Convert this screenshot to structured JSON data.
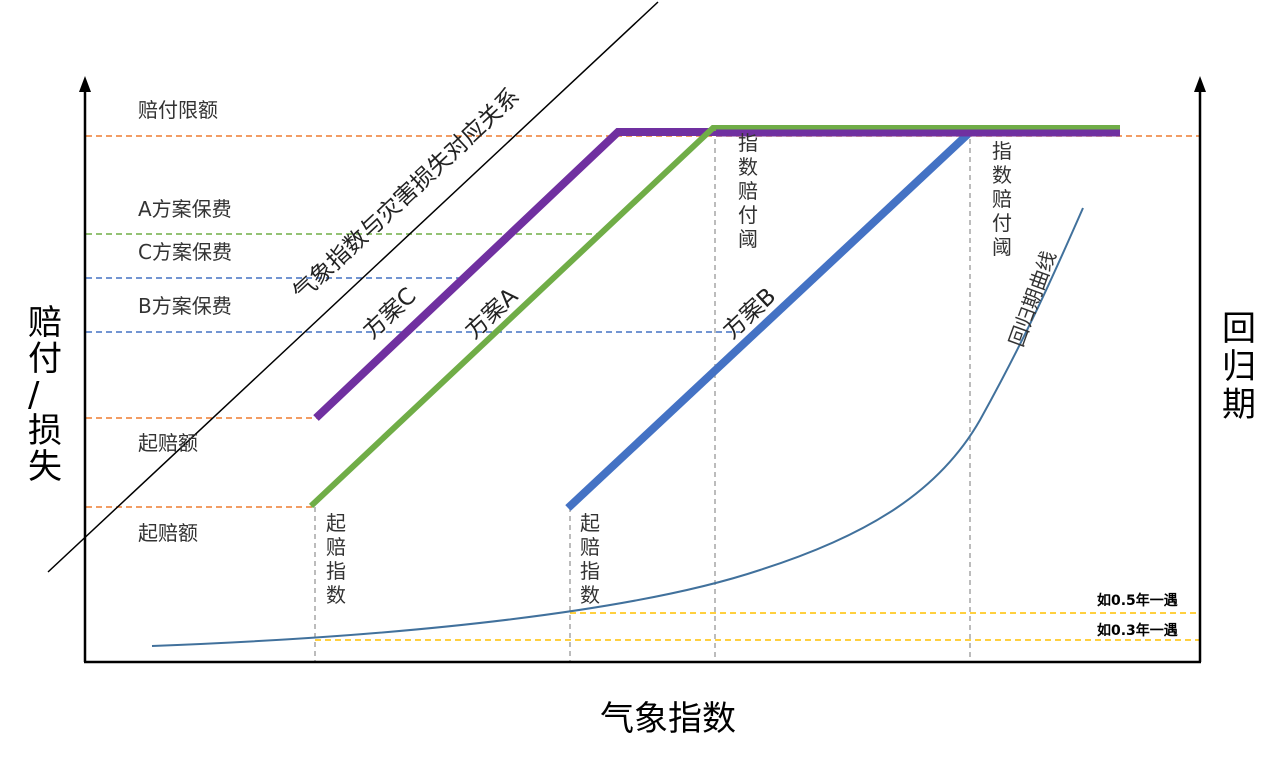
{
  "axes": {
    "x_title": "气象指数",
    "y_left_title": "赔付/损失",
    "y_right_title": "回归期"
  },
  "left_labels": {
    "limit": "赔付限额",
    "premium_a": "A方案保费",
    "premium_c": "C方案保费",
    "premium_b": "B方案保费",
    "deductible_upper": "起赔额",
    "deductible_lower": "起赔额"
  },
  "diagonal_label": "气象指数与灾害损失对应关系",
  "schemes": {
    "c": {
      "label": "方案C",
      "color": "#7030A0"
    },
    "a": {
      "label": "方案A",
      "color": "#70AD47"
    },
    "b": {
      "label": "方案B",
      "color": "#4472C4"
    }
  },
  "vertical_labels": {
    "trigger_1": "起赔指数",
    "trigger_2": "起赔指数",
    "exhaust_1": "指数赔付阈",
    "exhaust_2": "指数赔付阈"
  },
  "return_curve_label": "回归期曲线",
  "return_period_labels": {
    "p05": "如0.5年一遇",
    "p03": "如0.3年一遇"
  },
  "colors": {
    "orange_dash": "#ED7D31",
    "green_dash": "#70AD47",
    "blue_dash": "#4472C4",
    "gray_dash": "#A6A6A6",
    "yellow_dash": "#FFC000",
    "curve": "#41719C"
  }
}
